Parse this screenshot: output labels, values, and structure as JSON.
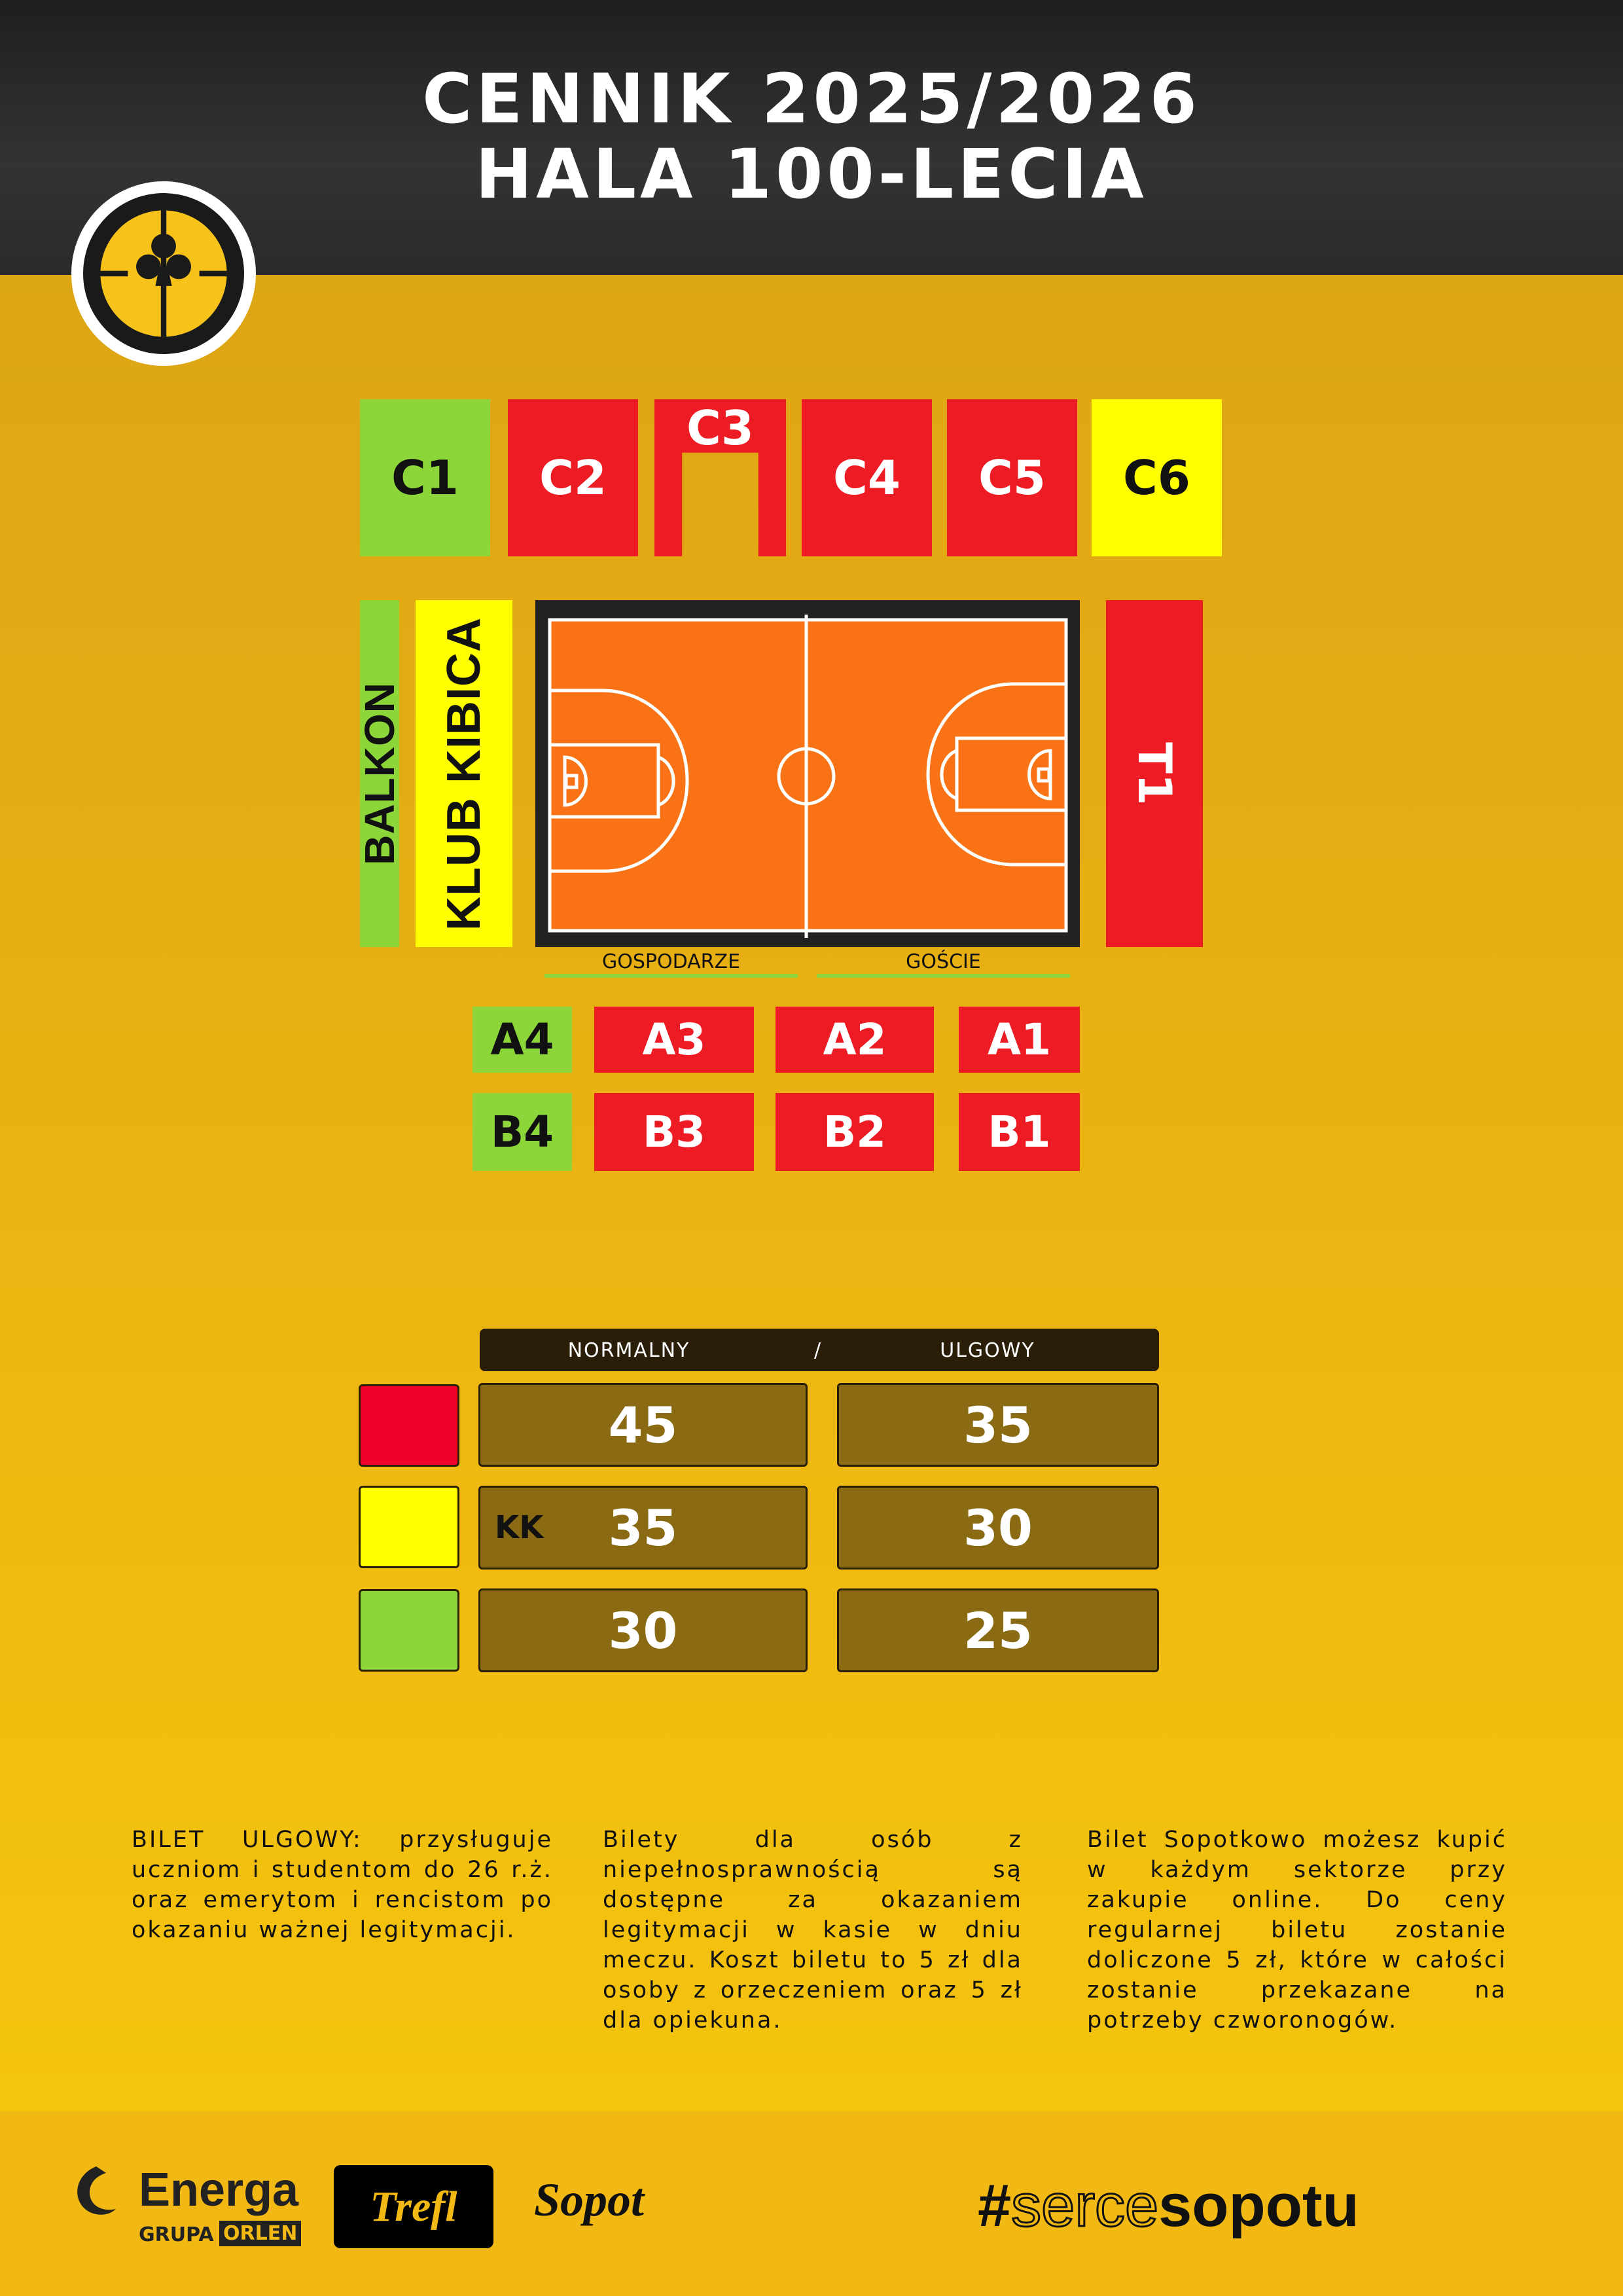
{
  "header": {
    "title_line1": "CENNIK 2025/2026",
    "title_line2": "HALA 100-LECIA"
  },
  "colors": {
    "red": "#ed1c24",
    "yellow": "#ffff00",
    "green": "#8cd63a",
    "court": "#f97316"
  },
  "sectors": {
    "top": [
      {
        "label": "C1",
        "color": "green"
      },
      {
        "label": "C2",
        "color": "red"
      },
      {
        "label": "C3",
        "color": "red"
      },
      {
        "label": "C4",
        "color": "red"
      },
      {
        "label": "C5",
        "color": "red"
      },
      {
        "label": "C6",
        "color": "yellow"
      }
    ],
    "balkon": "BALKON",
    "klub_kibica": "KLUB KIBICA",
    "t1": "T1",
    "row_a": [
      {
        "label": "A4",
        "color": "green"
      },
      {
        "label": "A3",
        "color": "red"
      },
      {
        "label": "A2",
        "color": "red"
      },
      {
        "label": "A1",
        "color": "red"
      }
    ],
    "row_b": [
      {
        "label": "B4",
        "color": "green"
      },
      {
        "label": "B3",
        "color": "red"
      },
      {
        "label": "B2",
        "color": "red"
      },
      {
        "label": "B1",
        "color": "red"
      }
    ]
  },
  "court": {
    "home": "GOSPODARZE",
    "away": "GOŚCIE"
  },
  "prices": {
    "header": {
      "normal": "NORMALNY",
      "sep": "/",
      "reduced": "ULGOWY"
    },
    "rows": [
      {
        "color": "red",
        "prefix": "",
        "normal": "45",
        "reduced": "35"
      },
      {
        "color": "yellow",
        "prefix": "KK",
        "normal": "35",
        "reduced": "30"
      },
      {
        "color": "green",
        "prefix": "",
        "normal": "30",
        "reduced": "25"
      }
    ]
  },
  "notes": [
    "BILET ULGOWY: przysługuje uczniom i studentom do 26 r.ż. oraz emerytom i rencistom po okazaniu ważnej legitymacji.",
    "Bilety dla osób z niepełnosprawnością są dostępne za okazaniem legitymacji w kasie w dniu meczu. Koszt biletu to 5 zł dla osoby z orzeczeniem oraz 5 zł dla opiekuna.",
    "Bilet Sopotkowo możesz kupić w każdym sektorze przy zakupie online. Do ceny regularnej biletu zostanie doliczone 5 zł, które w całości zostanie przekazane na potrzeby czworonogów."
  ],
  "footer": {
    "energa": "Energa",
    "grupa": "GRUPA",
    "orlen": "ORLEN",
    "trefl": "Trefl",
    "sopot": "Sopot",
    "hashtag_a": "#",
    "hashtag_b": "serce",
    "hashtag_c": "sopotu"
  }
}
